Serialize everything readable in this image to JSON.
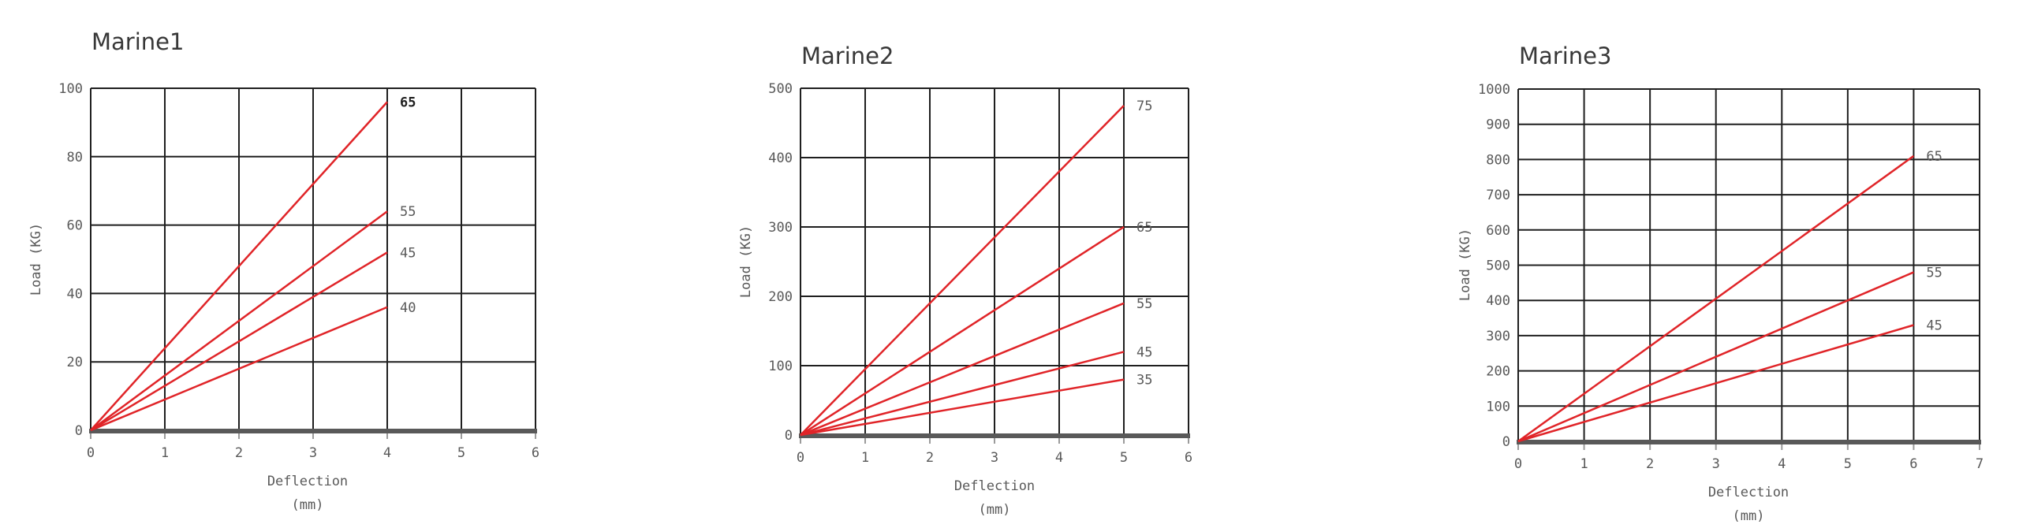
{
  "colors": {
    "line": "#e02428",
    "grid": "#1f1f1f",
    "axis_baseline": "#595959",
    "axis_tick": "#9b9b9b",
    "tick_text": "#595959",
    "title_text": "#383838"
  },
  "chart_data": [
    {
      "type": "line",
      "title": "Marine1",
      "ylabel": "Load (KG)",
      "xlabel_line1": "Deflection",
      "xlabel_line2": "(mm)",
      "xlim": [
        0,
        6
      ],
      "ylim": [
        0,
        100
      ],
      "xticks": [
        0,
        1,
        2,
        3,
        4,
        5,
        6
      ],
      "yticks": [
        0,
        20,
        40,
        60,
        80,
        100
      ],
      "grid": true,
      "legend": "labels-at-line-end",
      "series": [
        {
          "label": "65",
          "x": [
            0,
            4
          ],
          "y": [
            0,
            96
          ],
          "label_color": "#1f1f1f",
          "bold": true
        },
        {
          "label": "55",
          "x": [
            0,
            4
          ],
          "y": [
            0,
            64
          ]
        },
        {
          "label": "45",
          "x": [
            0,
            4
          ],
          "y": [
            0,
            52
          ]
        },
        {
          "label": "40",
          "x": [
            0,
            4
          ],
          "y": [
            0,
            36
          ]
        }
      ]
    },
    {
      "type": "line",
      "title": "Marine2",
      "ylabel": "Load (KG)",
      "xlabel_line1": "Deflection",
      "xlabel_line2": "(mm)",
      "xlim": [
        0,
        6
      ],
      "ylim": [
        0,
        500
      ],
      "xticks": [
        0,
        1,
        2,
        3,
        4,
        5,
        6
      ],
      "yticks": [
        0,
        100,
        200,
        300,
        400,
        500
      ],
      "grid": true,
      "legend": "labels-at-line-end",
      "series": [
        {
          "label": "75",
          "x": [
            0,
            5
          ],
          "y": [
            0,
            475
          ]
        },
        {
          "label": "65",
          "x": [
            0,
            5
          ],
          "y": [
            0,
            300
          ]
        },
        {
          "label": "55",
          "x": [
            0,
            5
          ],
          "y": [
            0,
            190
          ]
        },
        {
          "label": "45",
          "x": [
            0,
            5
          ],
          "y": [
            0,
            120
          ]
        },
        {
          "label": "35",
          "x": [
            0,
            5
          ],
          "y": [
            0,
            80
          ]
        }
      ]
    },
    {
      "type": "line",
      "title": "Marine3",
      "ylabel": "Load (KG)",
      "xlabel_line1": "Deflection",
      "xlabel_line2": "(mm)",
      "xlim": [
        0,
        7
      ],
      "ylim": [
        0,
        1000
      ],
      "xticks": [
        0,
        1,
        2,
        3,
        4,
        5,
        6,
        7
      ],
      "yticks": [
        0,
        100,
        200,
        300,
        400,
        500,
        600,
        700,
        800,
        900,
        1000
      ],
      "grid": true,
      "legend": "labels-at-line-end",
      "series": [
        {
          "label": "65",
          "x": [
            0,
            6
          ],
          "y": [
            0,
            810
          ]
        },
        {
          "label": "55",
          "x": [
            0,
            6
          ],
          "y": [
            0,
            480
          ]
        },
        {
          "label": "45",
          "x": [
            0,
            6
          ],
          "y": [
            0,
            330
          ]
        }
      ]
    }
  ]
}
